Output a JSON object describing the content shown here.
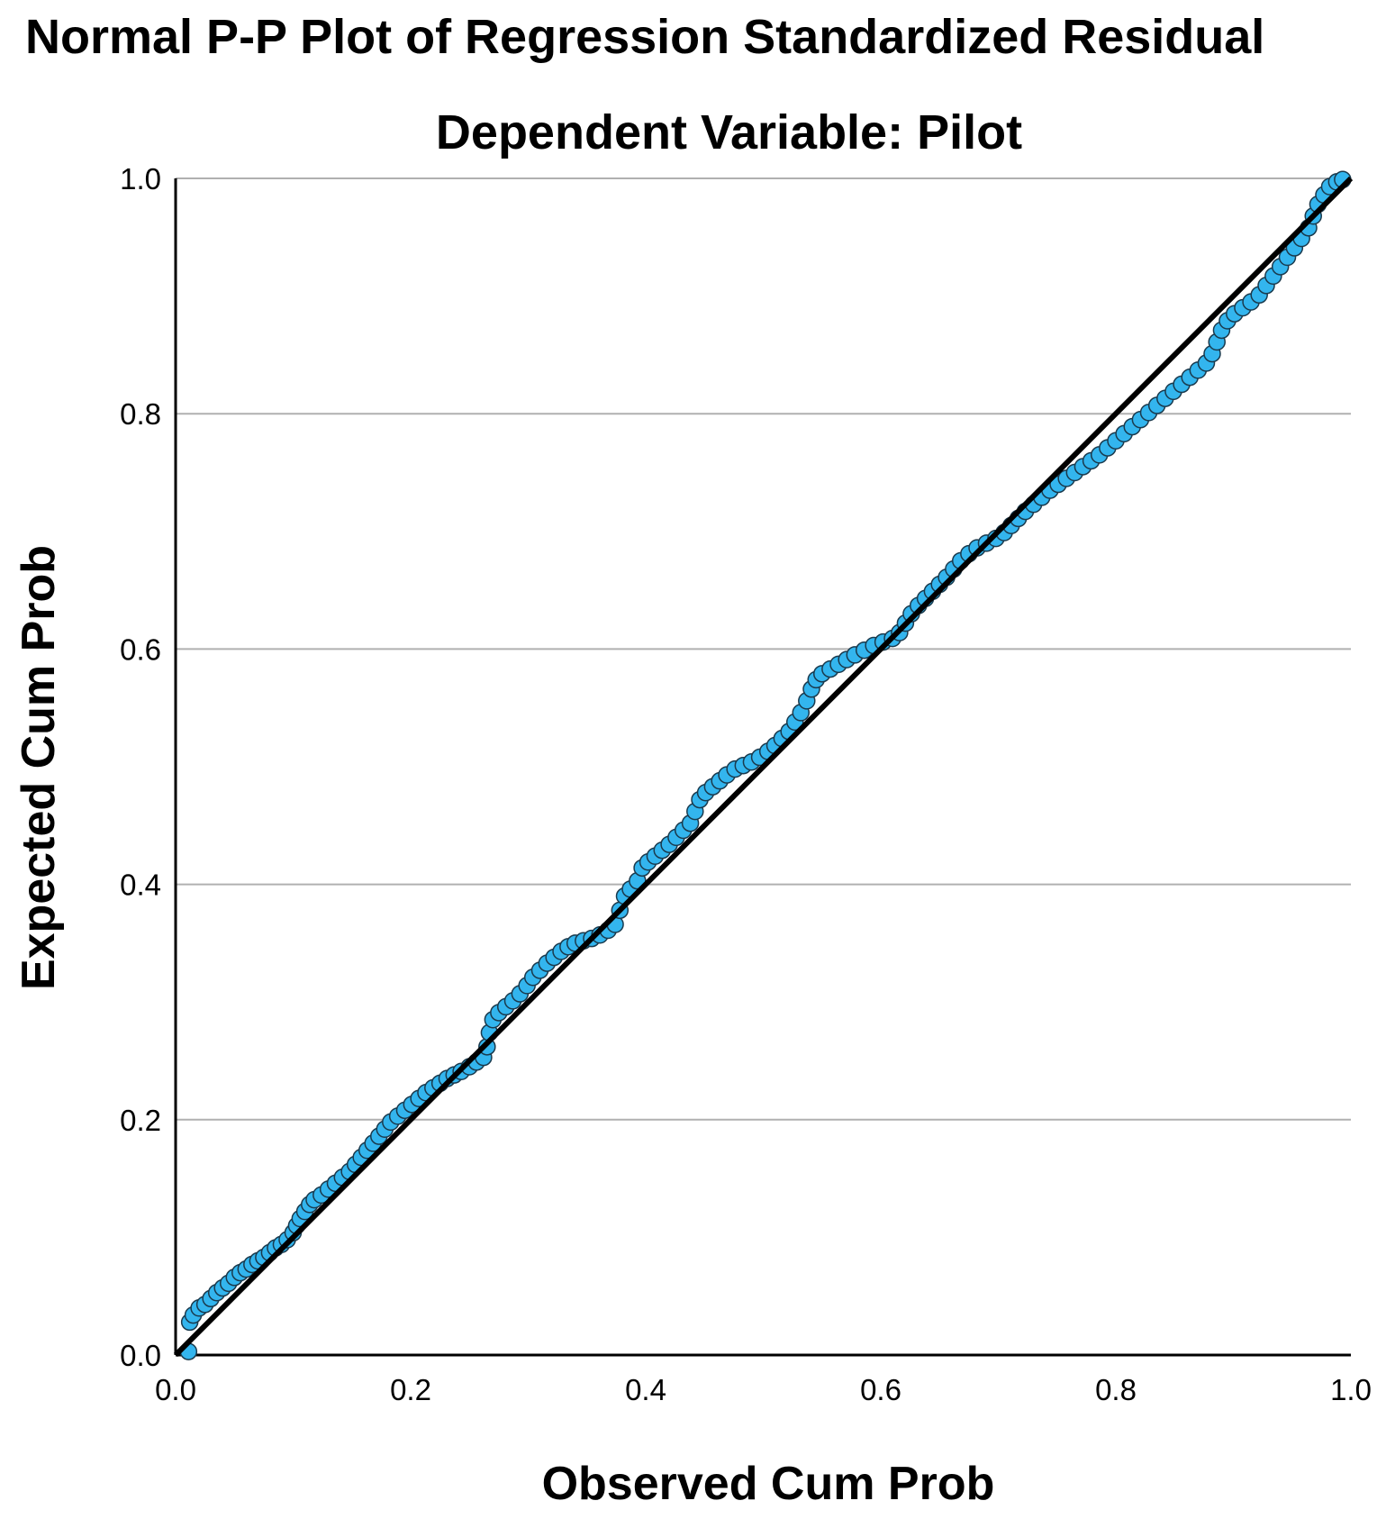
{
  "chart_data": {
    "type": "scatter",
    "title": "Normal P-P Plot of Regression Standardized Residual",
    "subtitle": "Dependent Variable: Pilot",
    "xlabel": "Observed Cum Prob",
    "ylabel": "Expected Cum Prob",
    "xlim": [
      0.0,
      1.0
    ],
    "ylim": [
      0.0,
      1.0
    ],
    "x_ticks": [
      "0.0",
      "0.2",
      "0.4",
      "0.6",
      "0.8",
      "1.0"
    ],
    "y_ticks": [
      "0.0",
      "0.2",
      "0.4",
      "0.6",
      "0.8",
      "1.0"
    ],
    "grid": "horizontal",
    "reference_line": [
      [
        0.0,
        0.0
      ],
      [
        1.0,
        1.0
      ]
    ],
    "colors": {
      "points": "#33b5ee",
      "point_outline": "#1a3a4d",
      "line": "#000000",
      "grid": "#b0b0b0"
    },
    "series": [
      {
        "points": [
          [
            0.011,
            0.003
          ],
          [
            0.012,
            0.028
          ],
          [
            0.015,
            0.034
          ],
          [
            0.02,
            0.04
          ],
          [
            0.025,
            0.043
          ],
          [
            0.03,
            0.048
          ],
          [
            0.035,
            0.053
          ],
          [
            0.04,
            0.057
          ],
          [
            0.045,
            0.061
          ],
          [
            0.05,
            0.066
          ],
          [
            0.055,
            0.07
          ],
          [
            0.06,
            0.073
          ],
          [
            0.065,
            0.077
          ],
          [
            0.07,
            0.08
          ],
          [
            0.075,
            0.083
          ],
          [
            0.08,
            0.087
          ],
          [
            0.085,
            0.091
          ],
          [
            0.09,
            0.094
          ],
          [
            0.095,
            0.098
          ],
          [
            0.1,
            0.104
          ],
          [
            0.103,
            0.11
          ],
          [
            0.106,
            0.116
          ],
          [
            0.11,
            0.122
          ],
          [
            0.114,
            0.128
          ],
          [
            0.118,
            0.132
          ],
          [
            0.124,
            0.136
          ],
          [
            0.13,
            0.141
          ],
          [
            0.136,
            0.146
          ],
          [
            0.142,
            0.151
          ],
          [
            0.148,
            0.156
          ],
          [
            0.153,
            0.162
          ],
          [
            0.158,
            0.168
          ],
          [
            0.163,
            0.174
          ],
          [
            0.168,
            0.18
          ],
          [
            0.173,
            0.186
          ],
          [
            0.178,
            0.192
          ],
          [
            0.183,
            0.198
          ],
          [
            0.189,
            0.203
          ],
          [
            0.195,
            0.208
          ],
          [
            0.201,
            0.213
          ],
          [
            0.207,
            0.218
          ],
          [
            0.213,
            0.223
          ],
          [
            0.219,
            0.227
          ],
          [
            0.225,
            0.231
          ],
          [
            0.231,
            0.235
          ],
          [
            0.237,
            0.238
          ],
          [
            0.243,
            0.241
          ],
          [
            0.25,
            0.245
          ],
          [
            0.256,
            0.249
          ],
          [
            0.262,
            0.253
          ],
          [
            0.265,
            0.262
          ],
          [
            0.267,
            0.274
          ],
          [
            0.27,
            0.285
          ],
          [
            0.275,
            0.291
          ],
          [
            0.281,
            0.296
          ],
          [
            0.287,
            0.301
          ],
          [
            0.293,
            0.307
          ],
          [
            0.299,
            0.314
          ],
          [
            0.304,
            0.321
          ],
          [
            0.31,
            0.327
          ],
          [
            0.316,
            0.333
          ],
          [
            0.322,
            0.338
          ],
          [
            0.328,
            0.343
          ],
          [
            0.334,
            0.347
          ],
          [
            0.34,
            0.35
          ],
          [
            0.347,
            0.352
          ],
          [
            0.354,
            0.354
          ],
          [
            0.361,
            0.357
          ],
          [
            0.368,
            0.361
          ],
          [
            0.374,
            0.366
          ],
          [
            0.378,
            0.378
          ],
          [
            0.382,
            0.39
          ],
          [
            0.387,
            0.396
          ],
          [
            0.393,
            0.403
          ],
          [
            0.397,
            0.414
          ],
          [
            0.402,
            0.419
          ],
          [
            0.408,
            0.424
          ],
          [
            0.414,
            0.429
          ],
          [
            0.42,
            0.434
          ],
          [
            0.426,
            0.44
          ],
          [
            0.432,
            0.446
          ],
          [
            0.438,
            0.452
          ],
          [
            0.442,
            0.462
          ],
          [
            0.446,
            0.472
          ],
          [
            0.451,
            0.478
          ],
          [
            0.457,
            0.483
          ],
          [
            0.463,
            0.488
          ],
          [
            0.469,
            0.493
          ],
          [
            0.476,
            0.498
          ],
          [
            0.483,
            0.501
          ],
          [
            0.49,
            0.504
          ],
          [
            0.497,
            0.508
          ],
          [
            0.504,
            0.513
          ],
          [
            0.51,
            0.518
          ],
          [
            0.516,
            0.524
          ],
          [
            0.522,
            0.53
          ],
          [
            0.527,
            0.538
          ],
          [
            0.532,
            0.546
          ],
          [
            0.537,
            0.556
          ],
          [
            0.541,
            0.566
          ],
          [
            0.545,
            0.574
          ],
          [
            0.55,
            0.579
          ],
          [
            0.557,
            0.583
          ],
          [
            0.564,
            0.587
          ],
          [
            0.571,
            0.591
          ],
          [
            0.578,
            0.595
          ],
          [
            0.586,
            0.599
          ],
          [
            0.594,
            0.603
          ],
          [
            0.602,
            0.606
          ],
          [
            0.61,
            0.609
          ],
          [
            0.616,
            0.614
          ],
          [
            0.621,
            0.622
          ],
          [
            0.626,
            0.63
          ],
          [
            0.632,
            0.637
          ],
          [
            0.638,
            0.643
          ],
          [
            0.644,
            0.649
          ],
          [
            0.65,
            0.655
          ],
          [
            0.656,
            0.661
          ],
          [
            0.662,
            0.668
          ],
          [
            0.668,
            0.675
          ],
          [
            0.675,
            0.681
          ],
          [
            0.682,
            0.686
          ],
          [
            0.69,
            0.69
          ],
          [
            0.698,
            0.694
          ],
          [
            0.705,
            0.699
          ],
          [
            0.711,
            0.705
          ],
          [
            0.717,
            0.711
          ],
          [
            0.723,
            0.717
          ],
          [
            0.73,
            0.723
          ],
          [
            0.737,
            0.729
          ],
          [
            0.744,
            0.735
          ],
          [
            0.751,
            0.74
          ],
          [
            0.758,
            0.745
          ],
          [
            0.765,
            0.75
          ],
          [
            0.772,
            0.755
          ],
          [
            0.779,
            0.76
          ],
          [
            0.786,
            0.765
          ],
          [
            0.793,
            0.771
          ],
          [
            0.8,
            0.777
          ],
          [
            0.807,
            0.783
          ],
          [
            0.814,
            0.789
          ],
          [
            0.821,
            0.795
          ],
          [
            0.828,
            0.801
          ],
          [
            0.835,
            0.807
          ],
          [
            0.842,
            0.813
          ],
          [
            0.849,
            0.819
          ],
          [
            0.856,
            0.825
          ],
          [
            0.863,
            0.831
          ],
          [
            0.87,
            0.837
          ],
          [
            0.877,
            0.843
          ],
          [
            0.882,
            0.851
          ],
          [
            0.886,
            0.861
          ],
          [
            0.89,
            0.871
          ],
          [
            0.895,
            0.879
          ],
          [
            0.901,
            0.885
          ],
          [
            0.908,
            0.89
          ],
          [
            0.915,
            0.895
          ],
          [
            0.922,
            0.901
          ],
          [
            0.928,
            0.909
          ],
          [
            0.934,
            0.917
          ],
          [
            0.94,
            0.925
          ],
          [
            0.946,
            0.933
          ],
          [
            0.952,
            0.941
          ],
          [
            0.958,
            0.949
          ],
          [
            0.964,
            0.958
          ],
          [
            0.968,
            0.968
          ],
          [
            0.972,
            0.978
          ],
          [
            0.977,
            0.986
          ],
          [
            0.982,
            0.993
          ],
          [
            0.988,
            0.997
          ],
          [
            0.993,
            0.999
          ]
        ]
      }
    ]
  }
}
